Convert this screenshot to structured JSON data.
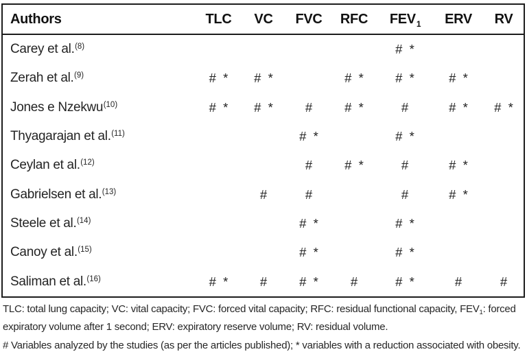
{
  "header": {
    "authors_label": "Authors",
    "columns": [
      {
        "id": "tlc",
        "label": "TLC",
        "sub": ""
      },
      {
        "id": "vc",
        "label": "VC",
        "sub": ""
      },
      {
        "id": "fvc",
        "label": "FVC",
        "sub": ""
      },
      {
        "id": "rfc",
        "label": "RFC",
        "sub": ""
      },
      {
        "id": "fev1",
        "label": "FEV",
        "sub": "1"
      },
      {
        "id": "erv",
        "label": "ERV",
        "sub": ""
      },
      {
        "id": "rv",
        "label": "RV",
        "sub": ""
      }
    ]
  },
  "rows": [
    {
      "author": "Carey et al.",
      "ref": "(8)",
      "cells": [
        "",
        "",
        "",
        "",
        "# *",
        "",
        ""
      ]
    },
    {
      "author": "Zerah et al.",
      "ref": "(9)",
      "cells": [
        "# *",
        "# *",
        "",
        "# *",
        "# *",
        "# *",
        ""
      ]
    },
    {
      "author": "Jones e Nzekwu",
      "ref": "(10)",
      "cells": [
        "# *",
        "# *",
        "#",
        "# *",
        "#",
        "# *",
        "# *"
      ]
    },
    {
      "author": "Thyagarajan et al.",
      "ref": "(11)",
      "cells": [
        "",
        "",
        "# *",
        "",
        "# *",
        "",
        ""
      ]
    },
    {
      "author": "Ceylan et al.",
      "ref": "(12)",
      "cells": [
        "",
        "",
        "#",
        "# *",
        "#",
        "# *",
        ""
      ]
    },
    {
      "author": "Gabrielsen et al.",
      "ref": "(13)",
      "cells": [
        "",
        "#",
        "#",
        "",
        "#",
        "# *",
        ""
      ]
    },
    {
      "author": "Steele et al.",
      "ref": "(14)",
      "cells": [
        "",
        "",
        "# *",
        "",
        "# *",
        "",
        ""
      ]
    },
    {
      "author": "Canoy et al.",
      "ref": "(15)",
      "cells": [
        "",
        "",
        "# *",
        "",
        "# *",
        "",
        ""
      ]
    },
    {
      "author": "Saliman et al.",
      "ref": "(16)",
      "cells": [
        "# *",
        "#",
        "# *",
        "#",
        "# *",
        "#",
        "#"
      ]
    }
  ],
  "footnotes": {
    "abbrev_pre": "TLC: total lung capacity; VC: vital capacity; FVC: forced vital capacity; RFC: residual functional capacity, FEV",
    "abbrev_sub": "1",
    "abbrev_post": ": forced",
    "abbrev_line2": "expiratory volume after 1 second; ERV: expiratory reserve volume; RV: residual volume.",
    "symbols_line": "# Variables analyzed by the studies (as per the articles published); * variables with a reduction associated with obesity."
  },
  "colors": {
    "border": "#1c1c1c",
    "text": "#202020",
    "background": "#ffffff"
  }
}
